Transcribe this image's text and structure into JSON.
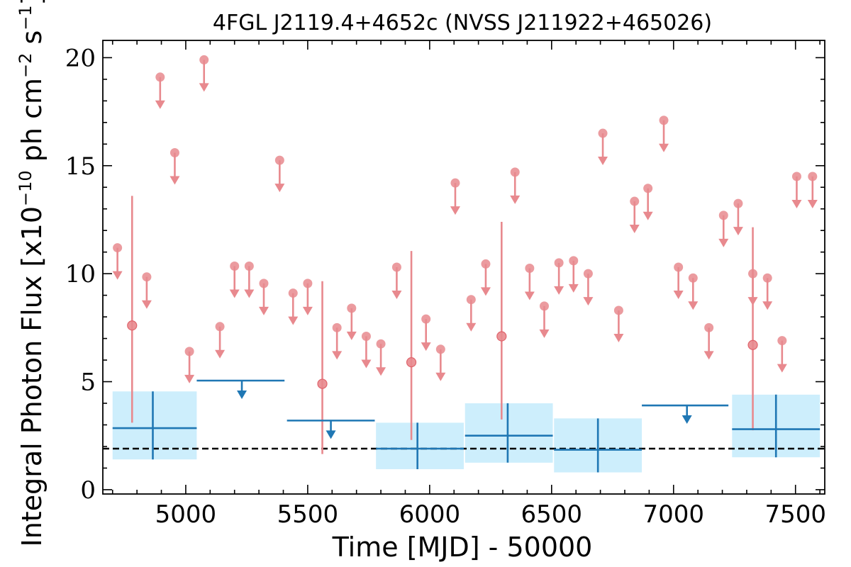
{
  "chart_data": {
    "type": "scatter",
    "title": "4FGL J2119.4+4652c (NVSS J211922+465026)",
    "xlabel": "Time [MJD] - 50000",
    "ylabel_parts": {
      "prefix": "Integral Photon Flux [x10",
      "exp1": "−10",
      "mid": " ph cm",
      "exp2": "−2",
      "mid2": " s",
      "exp3": "−1",
      "suffix": "]"
    },
    "xlim": [
      4660,
      7620
    ],
    "ylim": [
      -0.2,
      20.8
    ],
    "xticks": [
      5000,
      5500,
      6000,
      6500,
      7000,
      7500
    ],
    "yticks": [
      0,
      5,
      10,
      15,
      20
    ],
    "colors": {
      "short_bins": "#e8898e",
      "long_bins": "#1f77b4",
      "error_box": "#cdeefc",
      "baseline": "#000000"
    },
    "baseline": 1.9,
    "series": [
      {
        "kind": "short-bin upper limits",
        "x": [
          4720,
          4840,
          4895,
          4955,
          5015,
          5075,
          5140,
          5200,
          5260,
          5320,
          5385,
          5440,
          5500,
          5620,
          5680,
          5740,
          5800,
          5865,
          5985,
          6045,
          6105,
          6170,
          6230,
          6350,
          6410,
          6470,
          6530,
          6590,
          6650,
          6710,
          6775,
          6840,
          6895,
          6960,
          7020,
          7080,
          7145,
          7205,
          7265,
          7325,
          7385,
          7445,
          7505,
          7570
        ],
        "y": [
          11.2,
          9.85,
          19.1,
          15.6,
          6.4,
          19.9,
          7.55,
          10.35,
          10.35,
          9.55,
          15.25,
          9.1,
          9.55,
          7.5,
          8.4,
          7.1,
          6.75,
          10.3,
          7.9,
          6.5,
          14.2,
          8.8,
          10.45,
          14.7,
          10.25,
          8.5,
          10.5,
          10.6,
          10.0,
          16.5,
          8.3,
          13.35,
          13.95,
          17.1,
          10.3,
          9.8,
          7.5,
          12.7,
          13.25,
          10.0,
          9.8,
          6.9,
          14.5,
          14.5
        ]
      },
      {
        "kind": "short-bin detections",
        "x": [
          4780,
          5560,
          5925,
          6295,
          7325
        ],
        "y": [
          7.6,
          4.9,
          5.9,
          7.1,
          6.7
        ],
        "yerr_low": [
          3.1,
          1.65,
          2.3,
          3.25,
          2.75
        ],
        "yerr_high": [
          13.6,
          9.65,
          11.05,
          12.4,
          12.15
        ]
      },
      {
        "kind": "long-bin detections",
        "x": [
          4865,
          5950,
          6320,
          6690,
          7420
        ],
        "y": [
          2.85,
          1.9,
          2.5,
          1.85,
          2.8
        ],
        "x_low": [
          4700,
          5780,
          6145,
          6510,
          7240
        ],
        "x_high": [
          5045,
          6140,
          6505,
          6870,
          7600
        ],
        "y_low": [
          1.4,
          0.95,
          1.25,
          0.8,
          1.5
        ],
        "y_high": [
          4.55,
          3.1,
          4.0,
          3.3,
          4.4
        ]
      },
      {
        "kind": "long-bin upper limits",
        "x": [
          5230,
          5595,
          7055
        ],
        "y": [
          5.05,
          3.2,
          3.9
        ],
        "x_low": [
          5045,
          5415,
          6870
        ],
        "x_high": [
          5405,
          5775,
          7225
        ]
      }
    ]
  }
}
